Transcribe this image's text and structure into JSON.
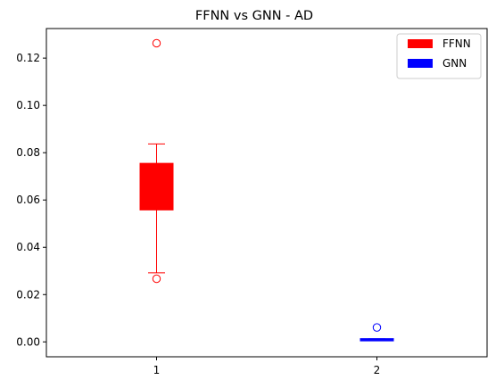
{
  "chart_data": {
    "type": "box",
    "title": "FFNN vs GNN - AD",
    "xlabel": "",
    "ylabel": "",
    "categories": [
      "1",
      "2"
    ],
    "ylim": [
      -0.0063,
      0.1325
    ],
    "yticks": [
      0.0,
      0.02,
      0.04,
      0.06,
      0.08,
      0.1,
      0.12
    ],
    "ytick_labels": [
      "0.00",
      "0.02",
      "0.04",
      "0.06",
      "0.08",
      "0.10",
      "0.12"
    ],
    "grid": false,
    "legend_position": "top-right",
    "series": [
      {
        "name": "FFNN",
        "color": "#ff0000",
        "q1": 0.0558,
        "median": 0.06,
        "q3": 0.0755,
        "whisker_low": 0.0292,
        "whisker_high": 0.0837,
        "outliers": [
          0.1263,
          0.0267
        ]
      },
      {
        "name": "GNN",
        "color": "#0000ff",
        "q1": 0.0007,
        "median": 0.0009,
        "q3": 0.0011,
        "whisker_low": 0.0006,
        "whisker_high": 0.0013,
        "outliers": [
          0.0061
        ]
      }
    ]
  }
}
